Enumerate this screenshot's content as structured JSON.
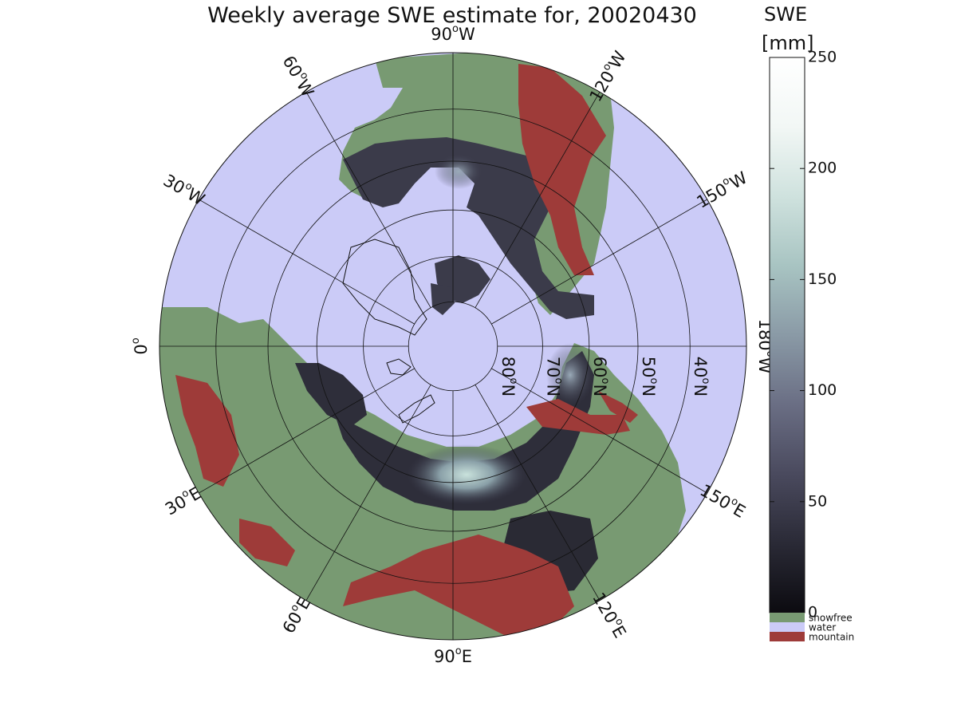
{
  "title": "Weekly average SWE estimate for, 20020430",
  "colorbar": {
    "title_line1": "SWE",
    "title_line2": "[mm]",
    "ticks": [
      {
        "value": 0,
        "label": "0"
      },
      {
        "value": 50,
        "label": "50"
      },
      {
        "value": 100,
        "label": "100"
      },
      {
        "value": 150,
        "label": "150"
      },
      {
        "value": 200,
        "label": "200"
      },
      {
        "value": 250,
        "label": "250"
      }
    ],
    "range": [
      0,
      250
    ],
    "gradient": [
      "#0c0b10",
      "#2a2a36",
      "#4a4a5e",
      "#6a6e84",
      "#8a9aa6",
      "#a8c4c2",
      "#cfe2de",
      "#f2f7f5",
      "#ffffff"
    ],
    "categories": [
      {
        "label": "snowfree",
        "color": "#789a72"
      },
      {
        "label": "water",
        "color": "#cbcbf7"
      },
      {
        "label": "mountain",
        "color": "#9e3b39"
      }
    ]
  },
  "map": {
    "projection": "north polar stereographic",
    "ocean_color": "#cbcbf7",
    "land_color": "#789a72",
    "mountain_color": "#9e3b39",
    "meridian_labels": [
      {
        "lon": -90,
        "base": "90",
        "hemi": "W"
      },
      {
        "lon": -120,
        "base": "120",
        "hemi": "W"
      },
      {
        "lon": -150,
        "base": "150",
        "hemi": "W"
      },
      {
        "lon": 180,
        "base": "180",
        "hemi": "W"
      },
      {
        "lon": 150,
        "base": "150",
        "hemi": "E"
      },
      {
        "lon": 120,
        "base": "120",
        "hemi": "E"
      },
      {
        "lon": 90,
        "base": "90",
        "hemi": "E"
      },
      {
        "lon": 60,
        "base": "60",
        "hemi": "E"
      },
      {
        "lon": 30,
        "base": "30",
        "hemi": "E"
      },
      {
        "lon": 0,
        "base": "0",
        "hemi": ""
      },
      {
        "lon": -30,
        "base": "30",
        "hemi": "W"
      },
      {
        "lon": -60,
        "base": "60",
        "hemi": "W"
      }
    ],
    "parallel_labels": [
      {
        "lat": 80,
        "base": "80",
        "hemi": "N"
      },
      {
        "lat": 70,
        "base": "70",
        "hemi": "N"
      },
      {
        "lat": 60,
        "base": "60",
        "hemi": "N"
      },
      {
        "lat": 50,
        "base": "50",
        "hemi": "N"
      },
      {
        "lat": 40,
        "base": "40",
        "hemi": "N"
      }
    ]
  }
}
